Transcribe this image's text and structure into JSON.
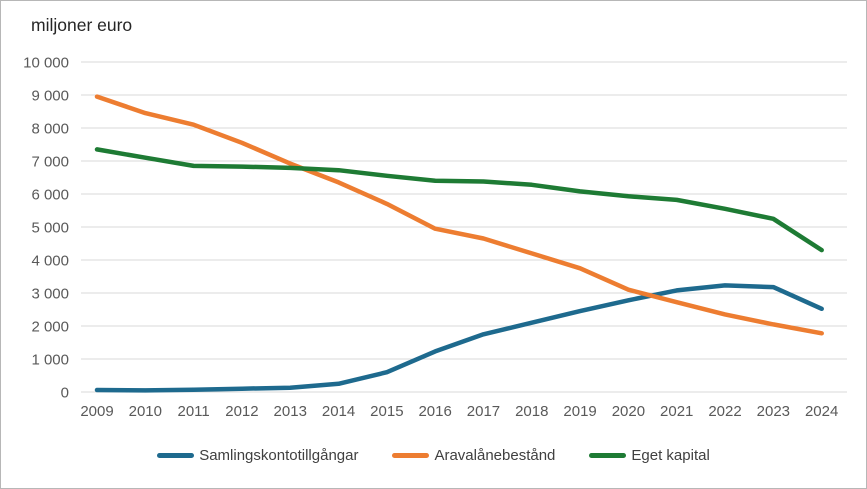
{
  "window": {
    "background_color": "#ffffff",
    "border_color": "#b7b7b7"
  },
  "chart_data": {
    "type": "line",
    "title": "miljoner euro",
    "xlabel": "",
    "ylabel": "miljoner euro",
    "ylim": [
      0,
      10000
    ],
    "y_tick_step": 1000,
    "y_tick_labels": [
      "0",
      "1 000",
      "2 000",
      "3 000",
      "4 000",
      "5 000",
      "6 000",
      "7 000",
      "8 000",
      "9 000",
      "10 000"
    ],
    "grid": "horizontal",
    "gridline_color": "#d9d9d9",
    "axis_label_color": "#595959",
    "legend_position": "bottom",
    "categories": [
      "2009",
      "2010",
      "2011",
      "2012",
      "2013",
      "2014",
      "2015",
      "2016",
      "2017",
      "2018",
      "2019",
      "2020",
      "2021",
      "2022",
      "2023",
      "2024"
    ],
    "series": [
      {
        "name": "Samlingskontotillgångar",
        "color": "#1e6a8e",
        "values": [
          60,
          50,
          70,
          100,
          130,
          250,
          600,
          1230,
          1750,
          2100,
          2450,
          2780,
          3080,
          3230,
          3180,
          2520
        ]
      },
      {
        "name": "Aravalånebestånd",
        "color": "#ed7d31",
        "values": [
          8950,
          8450,
          8100,
          7550,
          6920,
          6350,
          5700,
          4950,
          4650,
          4200,
          3750,
          3100,
          2720,
          2350,
          2050,
          1780
        ]
      },
      {
        "name": "Eget kapital",
        "color": "#1e7b34",
        "values": [
          7350,
          7100,
          6850,
          6830,
          6790,
          6720,
          6550,
          6400,
          6380,
          6280,
          6080,
          5930,
          5820,
          5550,
          5250,
          4300
        ]
      }
    ]
  }
}
